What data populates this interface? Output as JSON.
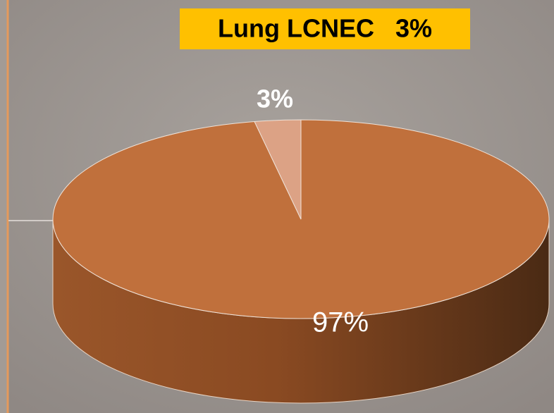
{
  "chart_data": {
    "type": "pie",
    "title": "Lung LCNEC   3%",
    "values": [
      97,
      3
    ],
    "value_labels": [
      "97%",
      "3%"
    ],
    "colors": [
      "#c0703c",
      "#dca285"
    ]
  }
}
